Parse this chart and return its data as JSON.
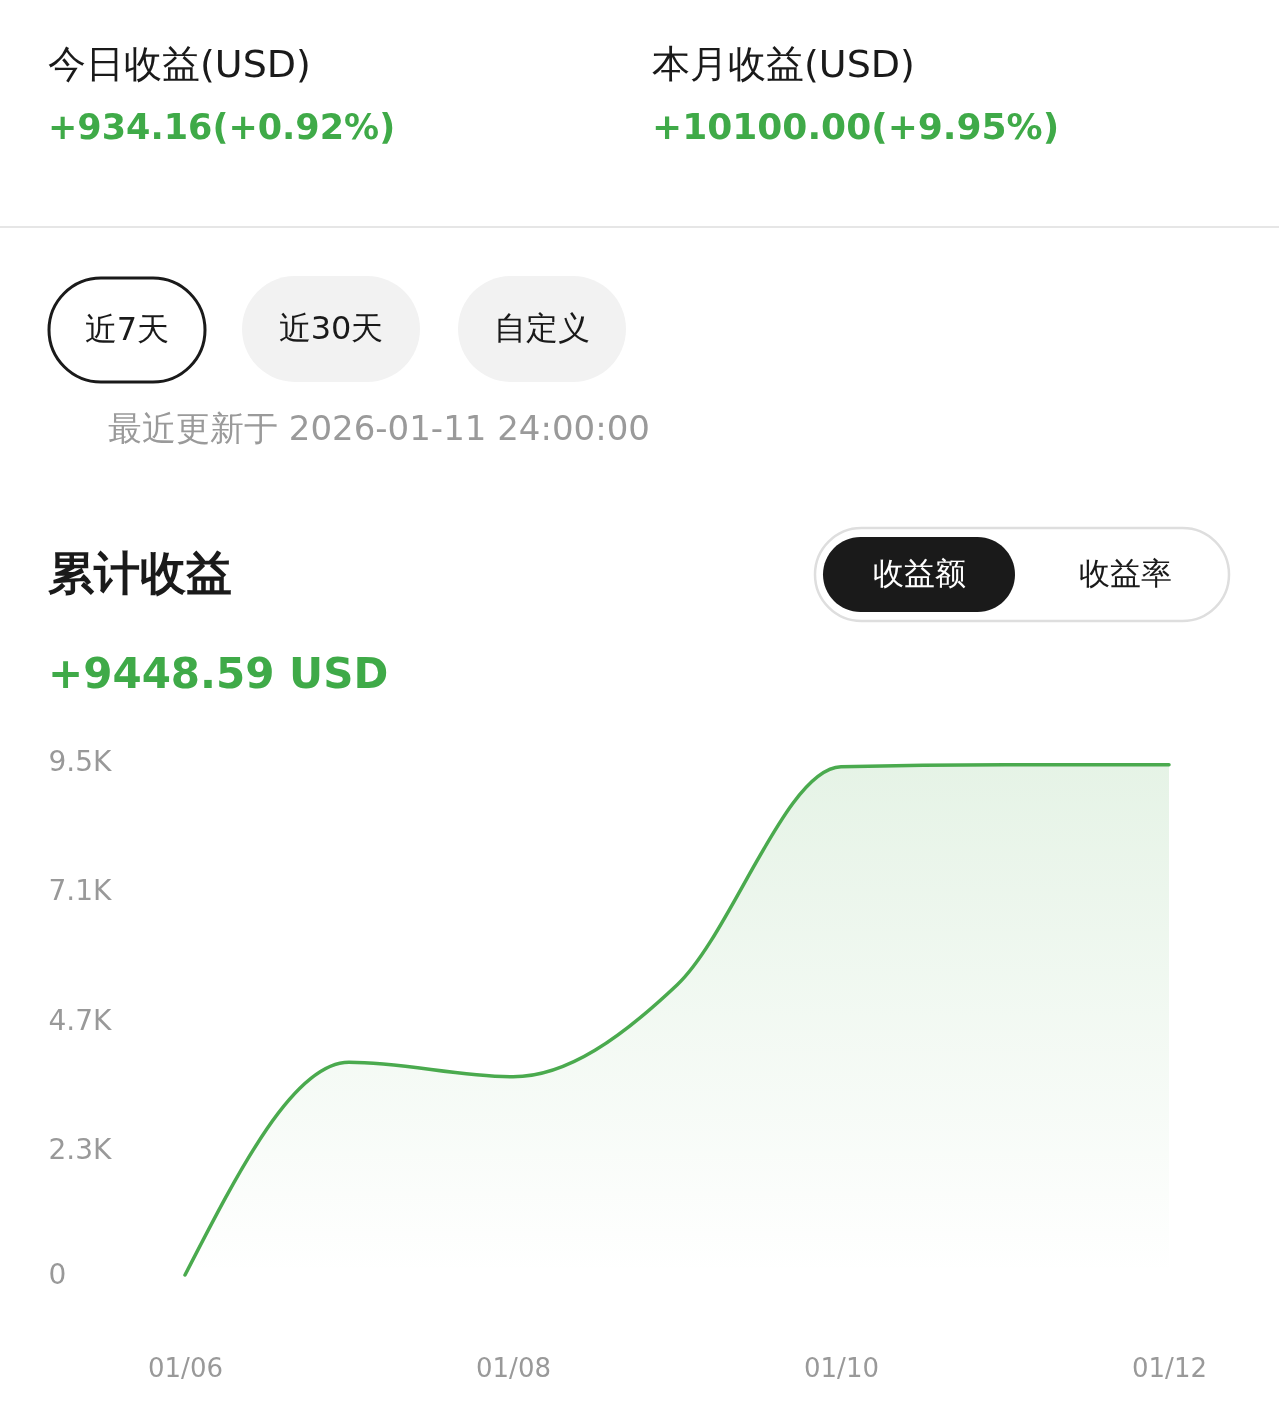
{
  "chart_data": {
    "type": "area",
    "title": "累计收益",
    "subtitle": "+9448.59 USD",
    "annotations": [
      "今日收益(USD)",
      "+934.16(+0.92%)",
      "本月收益(USD)",
      "+10100.00(+9.95%)",
      "近7天",
      "近30天",
      "自定义",
      "最近更新于 2026-01-11 24:00:00",
      "收益额",
      "收益率"
    ],
    "x": [
      "--01-06",
      "--01-07",
      "--01-08",
      "--01-09",
      "--01-10",
      "--01-11",
      "--01-12"
    ],
    "series": [
      {
        "color": "#4aaa4e",
        "values": [
          0,
          3940,
          3670,
          5370,
          9410,
          9450,
          9450
        ]
      }
    ],
    "xlim": [
      "--01-06",
      "--01-12"
    ],
    "xticks": [
      {
        "value": "--01-06",
        "label": "01/06"
      },
      {
        "value": "--01-08",
        "label": "01/08"
      },
      {
        "value": "--01-10",
        "label": "01/10"
      },
      {
        "value": "--01-12",
        "label": "01/12"
      }
    ],
    "ylim": [
      0,
      9500
    ],
    "yticks": [
      0,
      {
        "value": 2300,
        "label": "2.3K"
      },
      {
        "value": 4700,
        "label": "4.7K"
      },
      {
        "value": 7100,
        "label": "7.1K"
      },
      {
        "value": 9500,
        "label": "9.5K"
      }
    ]
  }
}
